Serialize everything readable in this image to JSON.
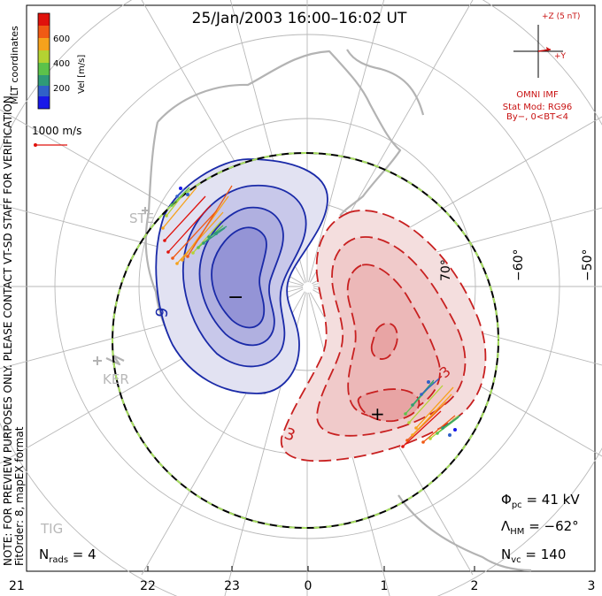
{
  "title": "25/Jan/2003 16:00–16:02 UT",
  "colorbar": {
    "label": "Vel [m/s]",
    "ticks": [
      "600",
      "400",
      "200"
    ],
    "colors": [
      "#e0120c",
      "#f05a14",
      "#f6a21c",
      "#b4d232",
      "#5cc24a",
      "#2f9a78",
      "#3060c8",
      "#1818e8"
    ]
  },
  "coord_label": "MLT coordinates",
  "scale_vector_label": "1000 m/s",
  "side_note_1": "NOTE: FOR PREVIEW PURPOSES ONLY. PLEASE CONTACT VT-SD STAFF FOR VERIFICATION.",
  "side_note_2": "FitOrder: 8, mapEX format",
  "imf": {
    "z_label": "+Z (5 nT)",
    "y_label": "+Y",
    "source": "OMNI IMF",
    "model_line1": "Stat Mod: RG96",
    "model_line2": "By−, 0<BT<4"
  },
  "stations": [
    "STE",
    "KER",
    "TIG"
  ],
  "lat_labels": [
    "70°",
    "−60°",
    "−50°"
  ],
  "contour_labels": [
    "9",
    "3",
    "-3"
  ],
  "markers": {
    "minimum": "−",
    "maximum": "+"
  },
  "mlt_axis": [
    "21",
    "22",
    "23",
    "0",
    "1",
    "2",
    "3"
  ],
  "stats": {
    "phi_pc_label": "Φ",
    "phi_pc_sub": "pc",
    "phi_pc_value": " = 41 kV",
    "hm_label": "Λ",
    "hm_sub": "HM",
    "hm_value": " = −62°",
    "nvc_label": "N",
    "nvc_sub": "vc",
    "nvc_value": " = 140",
    "nrads_label": "N",
    "nrads_sub": "rads",
    "nrads_value": " = 4"
  }
}
